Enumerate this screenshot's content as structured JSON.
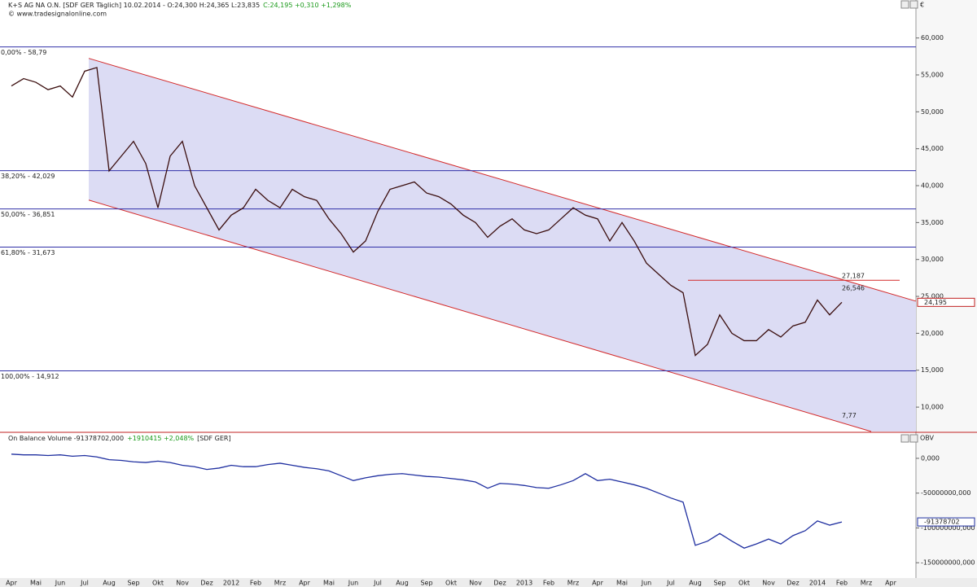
{
  "chart_data": [
    {
      "type": "line",
      "title": "K+S AG NA O.N. [SDF GER  Täglich] 10.02.2014 - O:24,300 H:24,365 L:23,835",
      "subtitle": "C:24,195 +0,310 +1,298%",
      "source": "© www.tradesignalonline.com",
      "y_axis_label": "€",
      "series": [
        {
          "color": "#3a0d0d",
          "values": [
            53.5,
            54.5,
            54,
            53,
            53.5,
            52,
            55.5,
            56,
            42,
            44,
            46,
            43,
            37,
            44,
            46,
            40,
            37,
            34,
            36,
            37,
            39.5,
            38,
            37,
            39.5,
            38.5,
            38,
            35.5,
            33.5,
            31,
            32.5,
            36.5,
            39.5,
            40,
            40.5,
            39,
            38.5,
            37.5,
            36,
            35,
            33,
            34.5,
            35.5,
            34,
            33.5,
            34,
            35.5,
            37,
            36,
            35.5,
            32.5,
            35,
            32.5,
            29.5,
            28,
            26.5,
            25.5,
            17,
            18.5,
            22.5,
            20,
            19,
            19,
            20.5,
            19.5,
            21,
            21.5,
            24.5,
            22.5,
            24.195,
            null,
            null,
            null,
            null
          ]
        }
      ],
      "ylim": [
        6.7,
        63.6
      ],
      "yticks": [
        {
          "value": 10,
          "label": "10,000"
        },
        {
          "value": 15,
          "label": "15,000"
        },
        {
          "value": 20,
          "label": "20,000"
        },
        {
          "value": 25,
          "label": "25,000"
        },
        {
          "value": 30,
          "label": "30,000"
        },
        {
          "value": 35,
          "label": "35,000"
        },
        {
          "value": 40,
          "label": "40,000"
        },
        {
          "value": 45,
          "label": "45,000"
        },
        {
          "value": 50,
          "label": "50,000"
        },
        {
          "value": 55,
          "label": "55,000"
        },
        {
          "value": 60,
          "label": "60,000"
        }
      ],
      "levels": [
        {
          "value": 58.79,
          "label": "0,00% - 58,79"
        },
        {
          "value": 42.029,
          "label": "38,20% - 42,029"
        },
        {
          "value": 36.851,
          "label": "50,00% - 36,851"
        },
        {
          "value": 31.673,
          "label": "61,80% - 31,673"
        },
        {
          "value": 14.912,
          "label": "100,00% - 14,912"
        }
      ],
      "level_color": "#3030a8",
      "channel": {
        "upper": [
          57.24,
          24.35
        ],
        "lower": [
          38.04,
          6.7
        ],
        "color": "#d42a2a",
        "fill": "#dcdcf4"
      },
      "annotations": [
        {
          "value": 27.187,
          "label": "27,187"
        },
        {
          "value": 26.546,
          "label": "26,546"
        },
        {
          "value": 7.77,
          "label": "7,77"
        }
      ],
      "last_value": {
        "value": 24.195,
        "label": "24,195"
      }
    },
    {
      "type": "line",
      "title": "On Balance Volume -91378702,000",
      "subtitle": "+1910415 +2,048%",
      "title_suffix": "[SDF GER]",
      "y_axis_label": "OBV",
      "categories": [
        "Apr",
        null,
        "Mai",
        null,
        "Jun",
        null,
        "Jul",
        null,
        "Aug",
        null,
        "Sep",
        null,
        "Okt",
        null,
        "Nov",
        null,
        "Dez",
        null,
        "2012",
        null,
        "Feb",
        null,
        "Mrz",
        null,
        "Apr",
        null,
        "Mai",
        null,
        "Jun",
        null,
        "Jul",
        null,
        "Aug",
        null,
        "Sep",
        null,
        "Okt",
        null,
        "Nov",
        null,
        "Dez",
        null,
        "2013",
        null,
        "Feb",
        null,
        "Mrz",
        null,
        "Apr",
        null,
        "Mai",
        null,
        "Jun",
        null,
        "Jul",
        null,
        "Aug",
        null,
        "Sep",
        null,
        "Okt",
        null,
        "Nov",
        null,
        "Dez",
        null,
        "2014",
        null,
        "Feb",
        null,
        "Mrz",
        null,
        "Apr"
      ],
      "series": [
        {
          "color": "#1f2fa0",
          "values": [
            6000000,
            5000000,
            5000000,
            4000000,
            5000000,
            3000000,
            4000000,
            2000000,
            -2000000,
            -3000000,
            -5000000,
            -6000000,
            -4000000,
            -6000000,
            -10000000,
            -12000000,
            -16000000,
            -14000000,
            -10000000,
            -12000000,
            -12000000,
            -9000000,
            -7000000,
            -10000000,
            -13000000,
            -15000000,
            -18000000,
            -25000000,
            -32000000,
            -28000000,
            -25000000,
            -23000000,
            -22000000,
            -24000000,
            -26000000,
            -27000000,
            -29000000,
            -31000000,
            -34000000,
            -43000000,
            -36000000,
            -37000000,
            -39000000,
            -42000000,
            -43000000,
            -38000000,
            -32000000,
            -22000000,
            -32000000,
            -30000000,
            -34000000,
            -38000000,
            -43000000,
            -50000000,
            -57000000,
            -63000000,
            -125000000,
            -119000000,
            -108000000,
            -119000000,
            -129000000,
            -123000000,
            -116000000,
            -123000000,
            -111000000,
            -104000000,
            -90000000,
            -96000000,
            -91378702,
            null,
            null,
            null,
            null
          ]
        }
      ],
      "ylim": [
        -172000000,
        21000000
      ],
      "yticks": [
        {
          "value": 0,
          "label": "0,000"
        },
        {
          "value": -50000000,
          "label": "-50000000,000"
        },
        {
          "value": -100000000,
          "label": "-100000000,000"
        },
        {
          "value": -150000000,
          "label": "-150000000,000"
        }
      ],
      "last_value": {
        "value": -91378702,
        "label": "-91378702"
      }
    }
  ]
}
